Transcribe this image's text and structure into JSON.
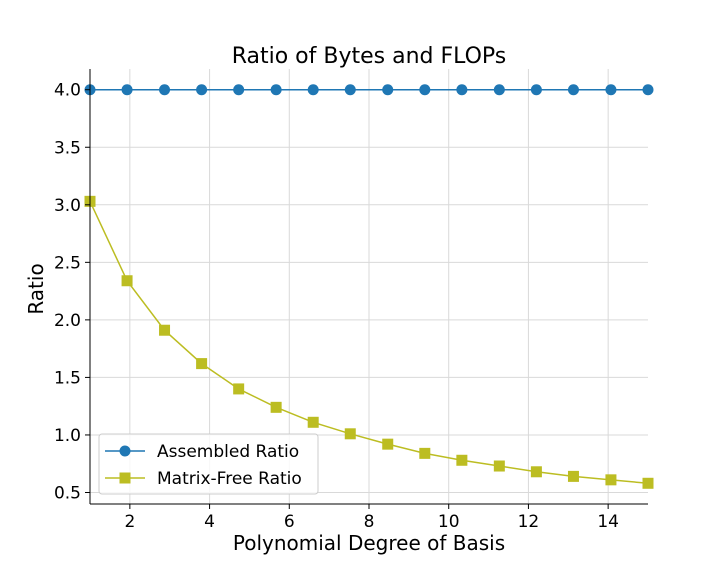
{
  "chart_data": {
    "type": "line",
    "title": "Ratio of Bytes and FLOPs",
    "xlabel": "Polynomial Degree of Basis",
    "ylabel": "Ratio",
    "xlim": [
      1,
      15
    ],
    "ylim": [
      0.4,
      4.18
    ],
    "xticks": [
      2,
      4,
      6,
      8,
      10,
      12,
      14
    ],
    "yticks": [
      0.5,
      1.0,
      1.5,
      2.0,
      2.5,
      3.0,
      3.5,
      4.0
    ],
    "ytick_labels": [
      "0.5",
      "1.0",
      "1.5",
      "2.0",
      "2.5",
      "3.0",
      "3.5",
      "4.0"
    ],
    "grid": true,
    "legend_position": "lower-left",
    "x": [
      1.0,
      1.93,
      2.87,
      3.8,
      4.73,
      5.67,
      6.6,
      7.53,
      8.47,
      9.4,
      10.33,
      11.27,
      12.2,
      13.13,
      14.07,
      15.0
    ],
    "series": [
      {
        "name": "Assembled Ratio",
        "color": "#1f77b4",
        "marker": "circle",
        "values": [
          4.0,
          4.0,
          4.0,
          4.0,
          4.0,
          4.0,
          4.0,
          4.0,
          4.0,
          4.0,
          4.0,
          4.0,
          4.0,
          4.0,
          4.0,
          4.0
        ]
      },
      {
        "name": "Matrix-Free Ratio",
        "color": "#bcbd22",
        "marker": "square",
        "values": [
          3.03,
          2.34,
          1.91,
          1.62,
          1.4,
          1.24,
          1.11,
          1.01,
          0.92,
          0.84,
          0.78,
          0.73,
          0.68,
          0.64,
          0.61,
          0.58
        ]
      }
    ]
  }
}
